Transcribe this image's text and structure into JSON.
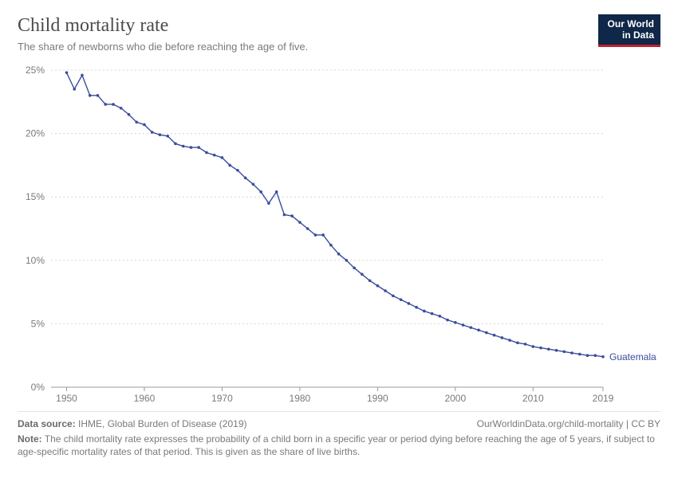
{
  "header": {
    "title": "Child mortality rate",
    "subtitle": "The share of newborns who die before reaching the age of five.",
    "logo_line1": "Our World",
    "logo_line2": "in Data"
  },
  "chart": {
    "type": "line",
    "background_color": "#ffffff",
    "grid_color": "#d8d8d8",
    "axis_color": "#999999",
    "tick_color": "#7a7a7a",
    "tick_fontsize": 12,
    "x": {
      "min": 1948,
      "max": 2019,
      "ticks": [
        1950,
        1960,
        1970,
        1980,
        1990,
        2000,
        2010,
        2019
      ],
      "tick_labels": [
        "1950",
        "1960",
        "1970",
        "1980",
        "1990",
        "2000",
        "2010",
        "2019"
      ]
    },
    "y": {
      "min": 0,
      "max": 25,
      "ticks": [
        0,
        5,
        10,
        15,
        20,
        25
      ],
      "tick_labels": [
        "0%",
        "5%",
        "10%",
        "15%",
        "20%",
        "25%"
      ]
    },
    "series": {
      "label": "Guatemala",
      "color": "#3b4c9b",
      "line_width": 1.4,
      "marker_radius": 1.8,
      "points": [
        [
          1950,
          24.8
        ],
        [
          1951,
          23.5
        ],
        [
          1952,
          24.6
        ],
        [
          1953,
          23.0
        ],
        [
          1954,
          23.0
        ],
        [
          1955,
          22.3
        ],
        [
          1956,
          22.3
        ],
        [
          1957,
          22.0
        ],
        [
          1958,
          21.5
        ],
        [
          1959,
          20.9
        ],
        [
          1960,
          20.7
        ],
        [
          1961,
          20.1
        ],
        [
          1962,
          19.9
        ],
        [
          1963,
          19.8
        ],
        [
          1964,
          19.2
        ],
        [
          1965,
          19.0
        ],
        [
          1966,
          18.9
        ],
        [
          1967,
          18.9
        ],
        [
          1968,
          18.5
        ],
        [
          1969,
          18.3
        ],
        [
          1970,
          18.1
        ],
        [
          1971,
          17.5
        ],
        [
          1972,
          17.1
        ],
        [
          1973,
          16.5
        ],
        [
          1974,
          16.0
        ],
        [
          1975,
          15.4
        ],
        [
          1976,
          14.5
        ],
        [
          1977,
          15.4
        ],
        [
          1978,
          13.6
        ],
        [
          1979,
          13.5
        ],
        [
          1980,
          13.0
        ],
        [
          1981,
          12.5
        ],
        [
          1982,
          12.0
        ],
        [
          1983,
          12.0
        ],
        [
          1984,
          11.2
        ],
        [
          1985,
          10.5
        ],
        [
          1986,
          10.0
        ],
        [
          1987,
          9.4
        ],
        [
          1988,
          8.9
        ],
        [
          1989,
          8.4
        ],
        [
          1990,
          8.0
        ],
        [
          1991,
          7.6
        ],
        [
          1992,
          7.2
        ],
        [
          1993,
          6.9
        ],
        [
          1994,
          6.6
        ],
        [
          1995,
          6.3
        ],
        [
          1996,
          6.0
        ],
        [
          1997,
          5.8
        ],
        [
          1998,
          5.6
        ],
        [
          1999,
          5.3
        ],
        [
          2000,
          5.1
        ],
        [
          2001,
          4.9
        ],
        [
          2002,
          4.7
        ],
        [
          2003,
          4.5
        ],
        [
          2004,
          4.3
        ],
        [
          2005,
          4.1
        ],
        [
          2006,
          3.9
        ],
        [
          2007,
          3.7
        ],
        [
          2008,
          3.5
        ],
        [
          2009,
          3.4
        ],
        [
          2010,
          3.2
        ],
        [
          2011,
          3.1
        ],
        [
          2012,
          3.0
        ],
        [
          2013,
          2.9
        ],
        [
          2014,
          2.8
        ],
        [
          2015,
          2.7
        ],
        [
          2016,
          2.6
        ],
        [
          2017,
          2.5
        ],
        [
          2018,
          2.5
        ],
        [
          2019,
          2.4
        ]
      ]
    }
  },
  "footer": {
    "source_label": "Data source:",
    "source_text": "IHME, Global Burden of Disease (2019)",
    "link_text": "OurWorldinData.org/child-mortality",
    "license": "CC BY",
    "note_label": "Note:",
    "note_text": "The child mortality rate expresses the probability of a child born in a specific year or period dying before reaching the age of 5 years, if subject to age-specific mortality rates of that period. This is given as the share of live births."
  }
}
